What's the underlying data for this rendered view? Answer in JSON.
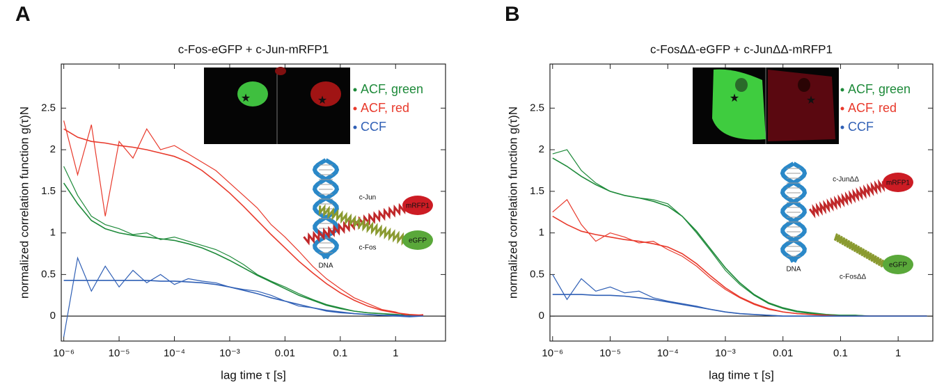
{
  "chart_data": [
    {
      "type": "line",
      "panel": "A",
      "title": "c-Fos-eGFP + c-Jun-mRFP1",
      "xlabel": "lag time τ [s]",
      "ylabel": "normalized correlation function g(τ)N",
      "xscale": "log",
      "xlim": [
        9e-07,
        8
      ],
      "ylim": [
        -0.3,
        3.03
      ],
      "xticks": [
        {
          "value": 1e-06,
          "label": "10⁻⁶"
        },
        {
          "value": 1e-05,
          "label": "10⁻⁵"
        },
        {
          "value": 0.0001,
          "label": "10⁻⁴"
        },
        {
          "value": 0.001,
          "label": "10⁻³"
        },
        0.01,
        0.1,
        1
      ],
      "yticks": [
        0,
        0.5,
        1,
        1.5,
        2,
        2.5
      ],
      "zero_line": true,
      "legend": "upper right",
      "x": [
        1e-06,
        1.78e-06,
        3.16e-06,
        5.62e-06,
        1e-05,
        1.78e-05,
        3.16e-05,
        5.62e-05,
        0.0001,
        0.000178,
        0.000316,
        0.000562,
        0.001,
        0.00178,
        0.00316,
        0.00562,
        0.01,
        0.0178,
        0.0316,
        0.0562,
        0.1,
        0.178,
        0.316,
        0.562,
        1,
        1.78,
        3.16
      ],
      "series": [
        {
          "name": "ACF, green",
          "color": "#1e8a3a",
          "values": [
            1.8,
            1.45,
            1.2,
            1.1,
            1.05,
            0.98,
            1.0,
            0.92,
            0.95,
            0.9,
            0.85,
            0.8,
            0.72,
            0.62,
            0.5,
            0.42,
            0.35,
            0.27,
            0.2,
            0.14,
            0.1,
            0.06,
            0.04,
            0.03,
            0.02,
            0.01,
            0.01
          ],
          "fit": [
            1.6,
            1.35,
            1.15,
            1.05,
            1.0,
            0.97,
            0.95,
            0.93,
            0.91,
            0.87,
            0.82,
            0.75,
            0.67,
            0.58,
            0.49,
            0.41,
            0.33,
            0.25,
            0.19,
            0.13,
            0.09,
            0.06,
            0.04,
            0.03,
            0.02,
            0.01,
            0.01
          ]
        },
        {
          "name": "ACF, red",
          "color": "#e8392b",
          "values": [
            2.35,
            1.7,
            2.3,
            1.2,
            2.1,
            1.9,
            2.25,
            2.0,
            2.05,
            1.95,
            1.85,
            1.75,
            1.6,
            1.45,
            1.3,
            1.1,
            0.95,
            0.78,
            0.6,
            0.45,
            0.33,
            0.22,
            0.15,
            0.08,
            0.05,
            0.0,
            0.02
          ],
          "fit": [
            2.25,
            2.15,
            2.1,
            2.08,
            2.05,
            2.03,
            2.0,
            1.96,
            1.92,
            1.85,
            1.75,
            1.62,
            1.48,
            1.32,
            1.15,
            0.98,
            0.82,
            0.66,
            0.52,
            0.39,
            0.28,
            0.19,
            0.12,
            0.07,
            0.04,
            0.02,
            0.01
          ]
        },
        {
          "name": "CCF",
          "color": "#2f5fb5",
          "values": [
            -0.25,
            0.7,
            0.3,
            0.6,
            0.35,
            0.55,
            0.4,
            0.5,
            0.38,
            0.45,
            0.42,
            0.4,
            0.35,
            0.32,
            0.3,
            0.25,
            0.18,
            0.12,
            0.1,
            0.06,
            0.04,
            0.03,
            0.02,
            0.01,
            0.0,
            -0.01,
            0.0
          ],
          "fit": [
            0.43,
            0.43,
            0.43,
            0.43,
            0.43,
            0.43,
            0.43,
            0.42,
            0.42,
            0.41,
            0.4,
            0.38,
            0.35,
            0.31,
            0.27,
            0.22,
            0.18,
            0.14,
            0.1,
            0.07,
            0.05,
            0.03,
            0.02,
            0.01,
            0.01,
            0.0,
            0.0
          ]
        }
      ],
      "annotations": [
        "c-Jun",
        "mRFP1",
        "c-Fos",
        "eGFP",
        "DNA"
      ]
    },
    {
      "type": "line",
      "panel": "B",
      "title": "c-FosΔΔ-eGFP + c-JunΔΔ-mRFP1",
      "xlabel": "lag time τ [s]",
      "ylabel": "normalized correlation function g(τ)N",
      "xscale": "log",
      "xlim": [
        9e-07,
        4
      ],
      "ylim": [
        -0.3,
        3.03
      ],
      "xticks": [
        {
          "value": 1e-06,
          "label": "10⁻⁶"
        },
        {
          "value": 1e-05,
          "label": "10⁻⁵"
        },
        {
          "value": 0.0001,
          "label": "10⁻⁴"
        },
        {
          "value": 0.001,
          "label": "10⁻³"
        },
        0.01,
        0.1,
        1
      ],
      "yticks": [
        0,
        0.5,
        1,
        1.5,
        2,
        2.5
      ],
      "zero_line": true,
      "legend": "upper right",
      "x": [
        1e-06,
        1.78e-06,
        3.16e-06,
        5.62e-06,
        1e-05,
        1.78e-05,
        3.16e-05,
        5.62e-05,
        0.0001,
        0.000178,
        0.000316,
        0.000562,
        0.001,
        0.00178,
        0.00316,
        0.00562,
        0.01,
        0.0178,
        0.0316,
        0.0562,
        0.1,
        0.178,
        0.316,
        0.562,
        1,
        1.78,
        3.16
      ],
      "series": [
        {
          "name": "ACF, green",
          "color": "#1e8a3a",
          "values": [
            1.95,
            2.0,
            1.75,
            1.6,
            1.5,
            1.45,
            1.42,
            1.4,
            1.35,
            1.2,
            1.0,
            0.78,
            0.55,
            0.38,
            0.25,
            0.15,
            0.09,
            0.05,
            0.03,
            0.02,
            0.01,
            0.01,
            0,
            0,
            0,
            0,
            0
          ],
          "fit": [
            1.9,
            1.8,
            1.68,
            1.58,
            1.5,
            1.45,
            1.42,
            1.38,
            1.32,
            1.2,
            1.02,
            0.8,
            0.58,
            0.4,
            0.26,
            0.16,
            0.1,
            0.06,
            0.04,
            0.02,
            0.01,
            0.01,
            0,
            0,
            0,
            0,
            0
          ]
        },
        {
          "name": "ACF, red",
          "color": "#e8392b",
          "values": [
            1.25,
            1.4,
            1.1,
            0.9,
            1.0,
            0.95,
            0.88,
            0.9,
            0.8,
            0.72,
            0.6,
            0.45,
            0.32,
            0.22,
            0.14,
            0.08,
            0.05,
            0.03,
            0.02,
            0.01,
            0,
            0,
            0,
            0,
            0,
            0,
            0
          ],
          "fit": [
            1.2,
            1.1,
            1.02,
            0.98,
            0.95,
            0.92,
            0.9,
            0.87,
            0.83,
            0.75,
            0.63,
            0.48,
            0.34,
            0.23,
            0.15,
            0.09,
            0.05,
            0.03,
            0.02,
            0.01,
            0,
            0,
            0,
            0,
            0,
            0,
            0
          ]
        },
        {
          "name": "CCF",
          "color": "#2f5fb5",
          "values": [
            0.5,
            0.2,
            0.45,
            0.3,
            0.35,
            0.28,
            0.3,
            0.22,
            0.18,
            0.15,
            0.12,
            0.08,
            0.05,
            0.03,
            0.02,
            0.01,
            0,
            0,
            0,
            0,
            0,
            0,
            0,
            0,
            0,
            0,
            0
          ],
          "fit": [
            0.26,
            0.26,
            0.26,
            0.25,
            0.25,
            0.24,
            0.22,
            0.2,
            0.17,
            0.14,
            0.11,
            0.08,
            0.05,
            0.03,
            0.02,
            0.01,
            0,
            0,
            0,
            0,
            0,
            0,
            0,
            0,
            0,
            0,
            0
          ]
        }
      ],
      "annotations": [
        "c-JunΔΔ",
        "mRFP1",
        "c-FosΔΔ",
        "eGFP",
        "DNA"
      ]
    }
  ]
}
